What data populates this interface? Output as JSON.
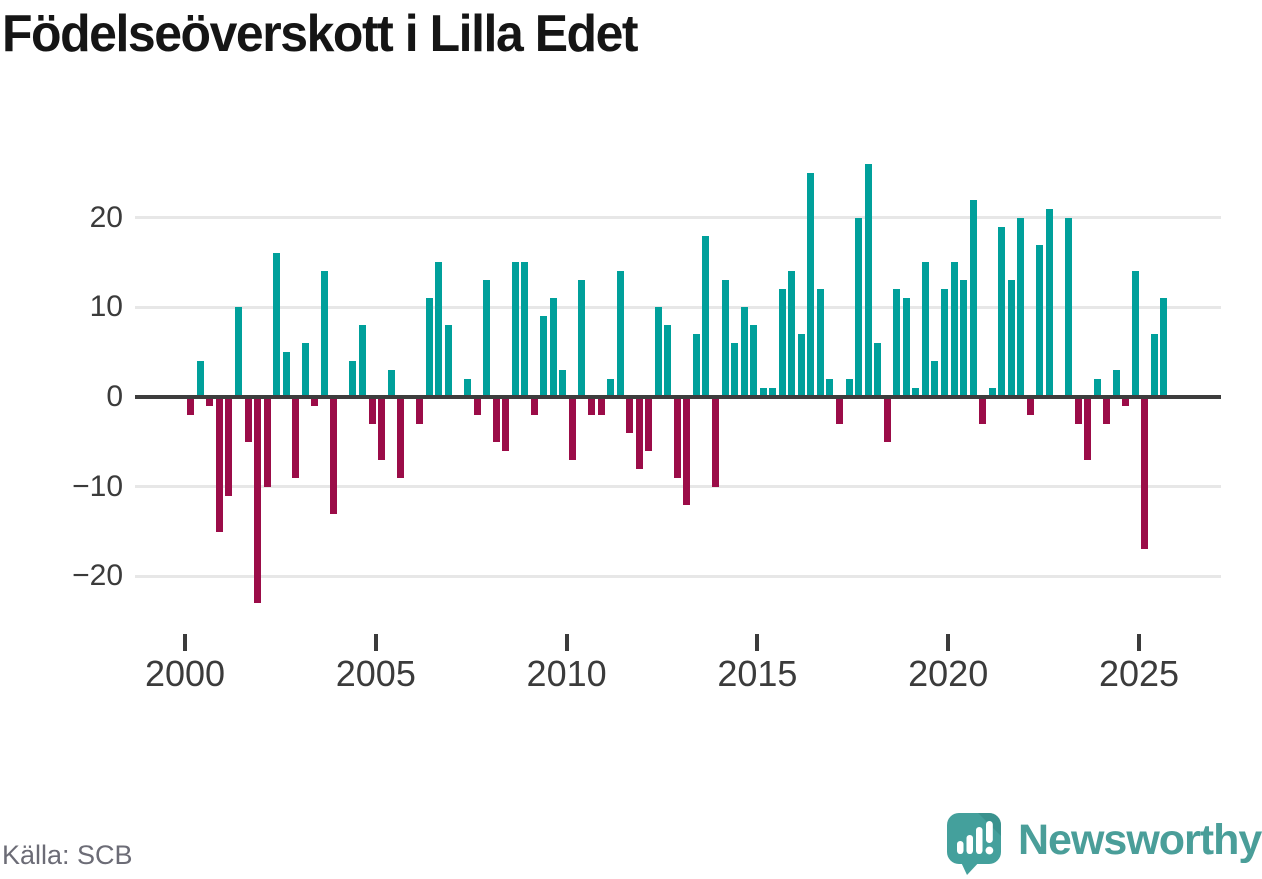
{
  "title": "Födelseöverskott i Lilla Edet",
  "source": "Källa: SCB",
  "logo": {
    "text": "Newsworthy"
  },
  "chart_data": {
    "type": "bar",
    "title": "Födelseöverskott i Lilla Edet",
    "frequency": "quarterly",
    "start_period": "2000 Q1",
    "end_period": "2025 Q3",
    "series": [
      {
        "name": "Födelseöverskott",
        "values": [
          -2,
          4,
          -1,
          -15,
          -11,
          10,
          -5,
          -23,
          -10,
          16,
          5,
          -9,
          6,
          -1,
          14,
          -13,
          0,
          4,
          8,
          -3,
          -7,
          3,
          -9,
          0,
          -3,
          11,
          15,
          8,
          0,
          2,
          -2,
          13,
          -5,
          -6,
          15,
          15,
          -2,
          9,
          11,
          3,
          -7,
          13,
          -2,
          -2,
          2,
          14,
          -4,
          -8,
          -6,
          10,
          8,
          -9,
          -12,
          7,
          18,
          -10,
          13,
          6,
          10,
          8,
          1,
          1,
          12,
          14,
          7,
          25,
          12,
          2,
          -3,
          2,
          20,
          26,
          6,
          -5,
          12,
          11,
          1,
          15,
          4,
          12,
          15,
          13,
          22,
          -3,
          1,
          19,
          13,
          20,
          -2,
          17,
          21,
          0,
          20,
          -3,
          -7,
          2,
          -3,
          3,
          -1,
          14,
          -17,
          7,
          11
        ]
      }
    ],
    "x_tick_labels": [
      "2000",
      "2005",
      "2010",
      "2015",
      "2020",
      "2025"
    ],
    "x_tick_years": [
      2000,
      2005,
      2010,
      2015,
      2020,
      2025
    ],
    "y_tick_labels": [
      "20",
      "10",
      "0",
      "−10",
      "−20"
    ],
    "y_tick_values": [
      20,
      10,
      0,
      -10,
      -20
    ],
    "ylim": [
      -24,
      27
    ],
    "grid": "horizontal",
    "legend": "none",
    "positive_color": "#00a09b",
    "negative_color": "#9b0c48"
  }
}
